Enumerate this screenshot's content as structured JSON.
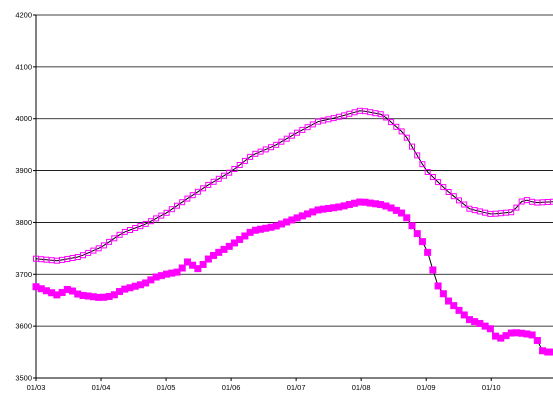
{
  "chart_data": {
    "type": "line",
    "title": "",
    "xlabel": "",
    "ylabel": "",
    "ylim": [
      3500,
      4200
    ],
    "yticks": [
      3500,
      3600,
      3700,
      3800,
      3900,
      4000,
      4100,
      4200
    ],
    "xticks": [
      "01/03",
      "01/04",
      "01/05",
      "01/06",
      "01/07",
      "01/08",
      "01/09",
      "01/10"
    ],
    "x_range_months": [
      3,
      10.95
    ],
    "grid": "horizontal",
    "legend": "none",
    "series": [
      {
        "color": "#ff00ff",
        "marker": "open-square",
        "line_color": "#000000",
        "points": [
          [
            3.0,
            3730
          ],
          [
            3.33,
            3726
          ],
          [
            3.67,
            3734
          ],
          [
            4.0,
            3752
          ],
          [
            4.33,
            3780
          ],
          [
            4.67,
            3796
          ],
          [
            5.0,
            3818
          ],
          [
            5.33,
            3846
          ],
          [
            5.67,
            3874
          ],
          [
            6.0,
            3898
          ],
          [
            6.33,
            3930
          ],
          [
            6.67,
            3948
          ],
          [
            7.0,
            3972
          ],
          [
            7.33,
            3994
          ],
          [
            7.67,
            4004
          ],
          [
            8.0,
            4016
          ],
          [
            8.33,
            4008
          ],
          [
            8.67,
            3970
          ],
          [
            9.0,
            3900
          ],
          [
            9.33,
            3860
          ],
          [
            9.67,
            3826
          ],
          [
            10.0,
            3816
          ],
          [
            10.33,
            3820
          ],
          [
            10.5,
            3845
          ],
          [
            10.67,
            3838
          ],
          [
            10.95,
            3840
          ]
        ]
      },
      {
        "color": "#ff00ff",
        "marker": "filled-square",
        "line_color": "#000000",
        "points": [
          [
            3.0,
            3676
          ],
          [
            3.33,
            3660
          ],
          [
            3.5,
            3672
          ],
          [
            3.67,
            3660
          ],
          [
            4.0,
            3655
          ],
          [
            4.17,
            3658
          ],
          [
            4.33,
            3670
          ],
          [
            4.67,
            3682
          ],
          [
            4.83,
            3694
          ],
          [
            5.0,
            3700
          ],
          [
            5.2,
            3705
          ],
          [
            5.33,
            3724
          ],
          [
            5.5,
            3710
          ],
          [
            5.67,
            3732
          ],
          [
            6.0,
            3756
          ],
          [
            6.33,
            3784
          ],
          [
            6.67,
            3792
          ],
          [
            7.0,
            3808
          ],
          [
            7.33,
            3824
          ],
          [
            7.67,
            3830
          ],
          [
            8.0,
            3840
          ],
          [
            8.33,
            3834
          ],
          [
            8.5,
            3826
          ],
          [
            8.67,
            3815
          ],
          [
            9.0,
            3752
          ],
          [
            9.17,
            3680
          ],
          [
            9.33,
            3650
          ],
          [
            9.67,
            3612
          ],
          [
            9.83,
            3605
          ],
          [
            10.0,
            3594
          ],
          [
            10.1,
            3574
          ],
          [
            10.33,
            3588
          ],
          [
            10.5,
            3586
          ],
          [
            10.67,
            3582
          ],
          [
            10.8,
            3550
          ],
          [
            10.95,
            3550
          ]
        ]
      }
    ]
  }
}
